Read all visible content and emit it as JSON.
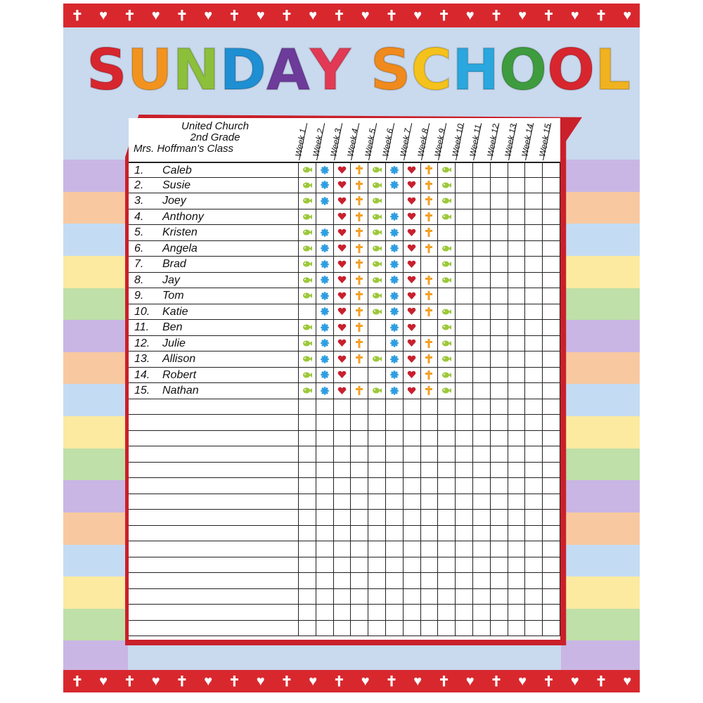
{
  "poster": {
    "title_letters": [
      {
        "ch": "S",
        "color": "#d8262f"
      },
      {
        "ch": "U",
        "color": "#f3931f"
      },
      {
        "ch": "N",
        "color": "#8cbf3a"
      },
      {
        "ch": "D",
        "color": "#1e8fd3"
      },
      {
        "ch": "A",
        "color": "#6d3b9a"
      },
      {
        "ch": "Y",
        "color": "#e23a55"
      },
      {
        "ch": " ",
        "color": "#000000"
      },
      {
        "ch": "S",
        "color": "#f08a1c"
      },
      {
        "ch": "C",
        "color": "#f5c21b"
      },
      {
        "ch": "H",
        "color": "#2aa7de"
      },
      {
        "ch": "O",
        "color": "#3e9c3f"
      },
      {
        "ch": "O",
        "color": "#d8262f"
      },
      {
        "ch": "L",
        "color": "#f0b21e"
      }
    ],
    "border_symbols": [
      "cross-icon",
      "heart-icon"
    ],
    "stripe_colors": [
      "#c9b6e4",
      "#f8c9a0",
      "#c4dcf3",
      "#fbeaa0",
      "#bfe0a8",
      "#c9b6e4",
      "#f8c9a0",
      "#c4dcf3",
      "#fbeaa0",
      "#bfe0a8",
      "#c9b6e4",
      "#f8c9a0",
      "#c4dcf3",
      "#fbeaa0",
      "#bfe0a8",
      "#c9b6e4"
    ]
  },
  "chart": {
    "header_lines": [
      "United Church",
      "2nd Grade",
      "Mrs. Hoffman's Class"
    ],
    "weeks": [
      "Week 1",
      "Week 2",
      "Week 3",
      "Week 4",
      "Week 5",
      "Week 6",
      "Week 7",
      "Week 8",
      "Week 9",
      "Week 10",
      "Week 11",
      "Week 12",
      "Week 13",
      "Week 14",
      "Week 15"
    ],
    "total_rows": 30,
    "sticker_legend": {
      "F": "fish-sticker",
      "W": "flower-sticker",
      "H": "heart-sticker",
      "C": "cross-sticker"
    },
    "sticker_colors": {
      "F": "#9cc83a",
      "W": "#2e9ee0",
      "H": "#c8202e",
      "C": "#f2a026"
    },
    "students": [
      {
        "num": "1.",
        "name": "Caleb",
        "stickers": "FWHCFWHCF"
      },
      {
        "num": "2.",
        "name": "Susie",
        "stickers": "FWHCFWHCF"
      },
      {
        "num": "3.",
        "name": "Joey",
        "stickers": "FWHCF-HCF"
      },
      {
        "num": "4.",
        "name": "Anthony",
        "stickers": "F-HCFWHCF"
      },
      {
        "num": "5.",
        "name": "Kristen",
        "stickers": "FWHCFWHC-"
      },
      {
        "num": "6.",
        "name": "Angela",
        "stickers": "FWHCFWHCF"
      },
      {
        "num": "7.",
        "name": "Brad",
        "stickers": "FWHCFWH-F"
      },
      {
        "num": "8.",
        "name": "Jay",
        "stickers": "FWHCFWHCF"
      },
      {
        "num": "9.",
        "name": "Tom",
        "stickers": "FWHCFWHC-"
      },
      {
        "num": "10.",
        "name": "Katie",
        "stickers": "-WHCFWHCF"
      },
      {
        "num": "11.",
        "name": "Ben",
        "stickers": "FWHC-WH-F"
      },
      {
        "num": "12.",
        "name": "Julie",
        "stickers": "FWHC-WHCF"
      },
      {
        "num": "13.",
        "name": "Allison",
        "stickers": "FWHCFWHCF"
      },
      {
        "num": "14.",
        "name": "Robert",
        "stickers": "FWH--WHCF"
      },
      {
        "num": "15.",
        "name": "Nathan",
        "stickers": "FWHCFWHCF"
      }
    ]
  }
}
